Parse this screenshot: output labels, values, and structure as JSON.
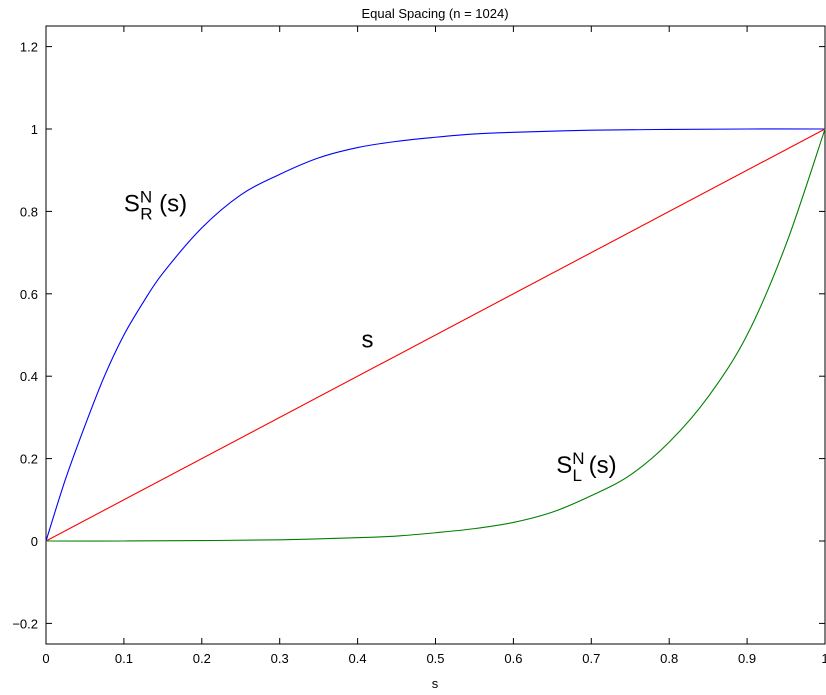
{
  "chart_data": {
    "type": "line",
    "title": "Equal Spacing (n = 1024)",
    "xlabel": "s",
    "ylabel": "",
    "xlim": [
      0,
      1
    ],
    "ylim": [
      -0.25,
      1.25
    ],
    "xticks": [
      0,
      0.1,
      0.2,
      0.3,
      0.4,
      0.5,
      0.6,
      0.7,
      0.8,
      0.9,
      1
    ],
    "xtick_labels": [
      "0",
      "0.1",
      "0.2",
      "0.3",
      "0.4",
      "0.5",
      "0.6",
      "0.7",
      "0.8",
      "0.9",
      "1"
    ],
    "yticks": [
      -0.2,
      0,
      0.2,
      0.4,
      0.6,
      0.8,
      1,
      1.2
    ],
    "ytick_labels": [
      "−0.2",
      "0",
      "0.2",
      "0.4",
      "0.6",
      "0.8",
      "1",
      "1.2"
    ],
    "grid": false,
    "series": [
      {
        "color": "#0000ff",
        "x": [
          0,
          0.025,
          0.05,
          0.075,
          0.1,
          0.125,
          0.15,
          0.2,
          0.25,
          0.3,
          0.35,
          0.4,
          0.45,
          0.5,
          0.55,
          0.6,
          0.7,
          0.8,
          0.9,
          1
        ],
        "y": [
          0,
          0.15,
          0.28,
          0.4,
          0.5,
          0.58,
          0.65,
          0.76,
          0.84,
          0.89,
          0.93,
          0.955,
          0.97,
          0.98,
          0.988,
          0.992,
          0.997,
          0.999,
          1.0,
          1.0
        ]
      },
      {
        "color": "#ff0000",
        "x": [
          0,
          1
        ],
        "y": [
          0,
          1
        ]
      },
      {
        "color": "#008000",
        "x": [
          0,
          0.1,
          0.2,
          0.3,
          0.4,
          0.45,
          0.5,
          0.55,
          0.6,
          0.65,
          0.7,
          0.75,
          0.8,
          0.85,
          0.9,
          0.95,
          1
        ],
        "y": [
          0,
          0.0,
          0.001,
          0.003,
          0.008,
          0.012,
          0.02,
          0.03,
          0.045,
          0.07,
          0.11,
          0.16,
          0.24,
          0.35,
          0.5,
          0.72,
          1.0
        ]
      }
    ],
    "annotations": [
      {
        "main": "S",
        "sup": "N",
        "sub": "R",
        "tail": " (s)",
        "x": 0.1,
        "y": 0.8
      },
      {
        "main": "s",
        "sup": "",
        "sub": "",
        "tail": "",
        "x": 0.405,
        "y": 0.47
      },
      {
        "main": "S",
        "sup": "N",
        "sub": "L",
        "tail": " (s)",
        "x": 0.655,
        "y": 0.165
      }
    ]
  }
}
